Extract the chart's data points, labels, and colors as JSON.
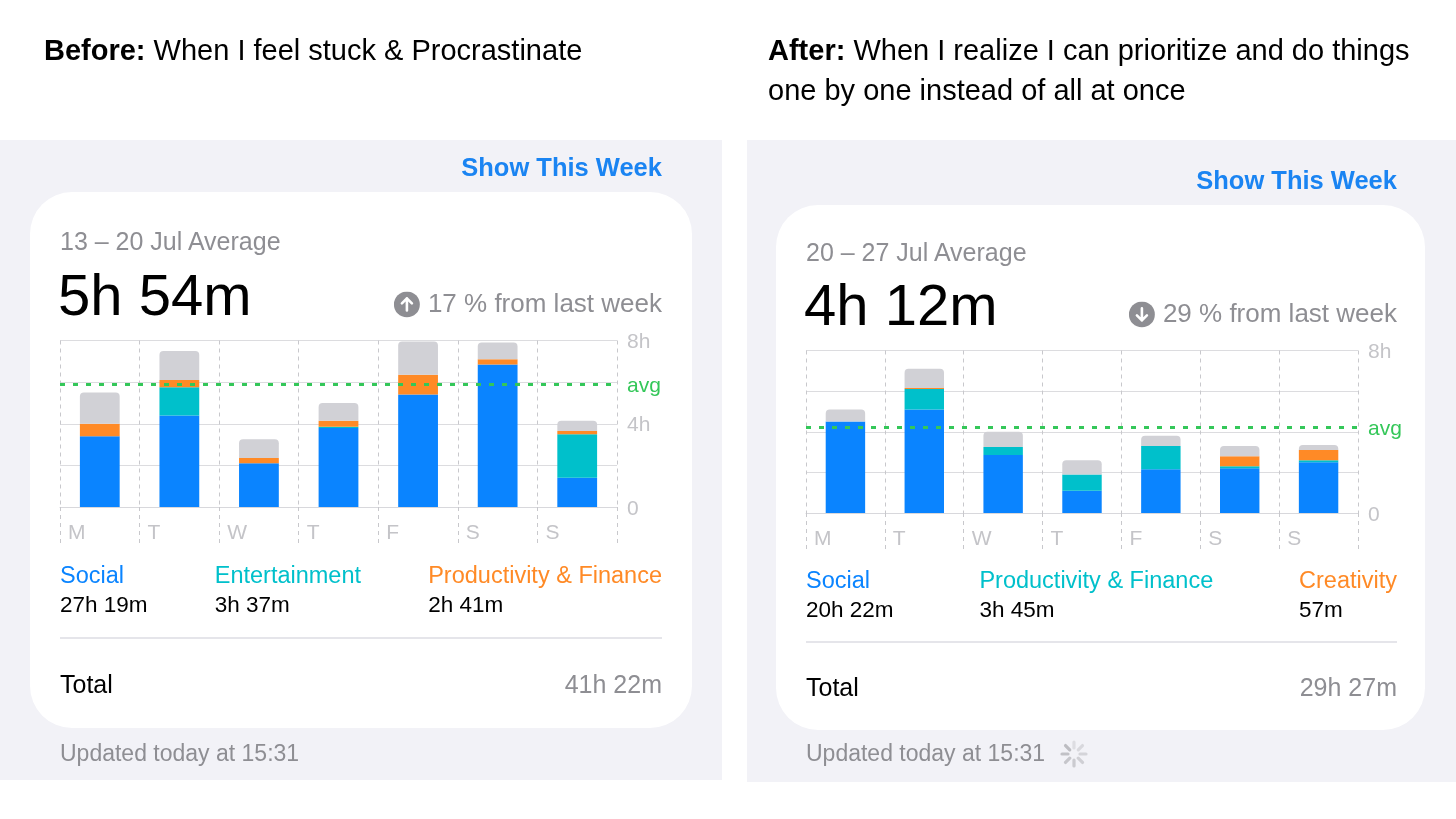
{
  "chart_data": [
    {
      "type": "bar",
      "title": "Before: When I feel stuck & Procrastinate",
      "categories": [
        "M",
        "T",
        "W",
        "T",
        "F",
        "S",
        "S"
      ],
      "stacked": true,
      "series": [
        {
          "name": "Social",
          "color": "#0a84ff",
          "values": [
            3.4,
            4.4,
            2.1,
            3.8,
            5.4,
            6.85,
            1.4
          ]
        },
        {
          "name": "Entertainment",
          "color": "#00c0cb",
          "values": [
            null,
            1.35,
            null,
            0.05,
            null,
            null,
            2.1
          ]
        },
        {
          "name": "Productivity & Finance",
          "color": "#ff8a26",
          "values": [
            0.6,
            0.35,
            0.25,
            0.3,
            0.95,
            0.25,
            0.15
          ]
        },
        {
          "color": "#d1d1d6",
          "values": [
            1.5,
            1.4,
            0.9,
            0.85,
            1.6,
            0.8,
            0.5
          ]
        }
      ],
      "ylim": [
        0,
        8
      ],
      "yticks": [
        0,
        {
          "value": 2,
          "label": null
        },
        {
          "value": 4,
          "label": "4h"
        },
        {
          "value": 6,
          "label": null
        },
        {
          "value": 8,
          "label": "8h"
        }
      ],
      "grid": true,
      "legend": "bottom",
      "ref_lines": [
        {
          "axis": "y",
          "value": 5.9,
          "label": "avg",
          "color": "#34c759",
          "line_style": "dashed"
        }
      ],
      "annotations": [
        "Show This Week",
        "13 – 20 Jul Average",
        "5h 54m",
        "17 % from last week",
        "27h 19m",
        "3h 37m",
        "2h 41m",
        "Total",
        "41h 22m",
        "Updated today at 15:31"
      ]
    },
    {
      "type": "bar",
      "title": "After: When I realize I can prioritize and do things one by one instead of all at once",
      "categories": [
        "M",
        "T",
        "W",
        "T",
        "F",
        "S",
        "S"
      ],
      "stacked": true,
      "series": [
        {
          "name": "Social",
          "color": "#0a84ff",
          "values": [
            4.5,
            5.1,
            2.85,
            1.1,
            2.15,
            2.2,
            2.5
          ]
        },
        {
          "name": "Productivity & Finance",
          "color": "#00c0cb",
          "values": [
            null,
            1.0,
            0.4,
            0.8,
            1.15,
            0.1,
            0.1
          ]
        },
        {
          "name": "Creativity",
          "color": "#ff8a26",
          "values": [
            null,
            0.05,
            null,
            null,
            null,
            0.5,
            0.5
          ]
        },
        {
          "color": "#d1d1d6",
          "values": [
            0.6,
            0.95,
            0.75,
            0.7,
            0.5,
            0.5,
            0.25
          ]
        }
      ],
      "ylim": [
        0,
        8
      ],
      "yticks": [
        0,
        {
          "value": 2,
          "label": null
        },
        {
          "value": 4,
          "label": null
        },
        {
          "value": 6,
          "label": null
        },
        {
          "value": 8,
          "label": "8h"
        }
      ],
      "grid": true,
      "legend": "bottom",
      "ref_lines": [
        {
          "axis": "y",
          "value": 4.2,
          "label": "avg",
          "color": "#34c759",
          "line_style": "dashed"
        }
      ],
      "annotations": [
        "Show This Week",
        "20 – 27 Jul Average",
        "4h 12m",
        "29 % from last week",
        "20h 22m",
        "3h 45m",
        "57m",
        "Total",
        "29h 27m",
        "Updated today at 15:31"
      ]
    }
  ]
}
